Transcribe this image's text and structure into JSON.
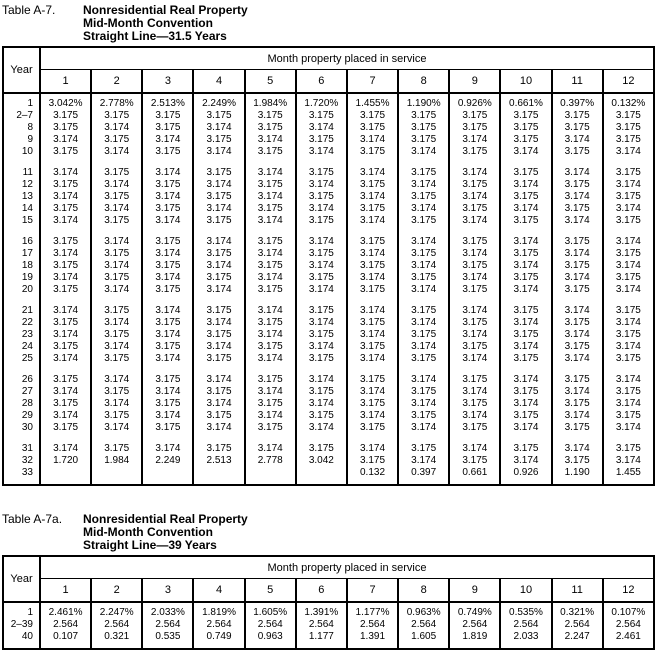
{
  "page": {
    "background": "#ffffff",
    "text_color": "#000000",
    "border_color": "#000000"
  },
  "tables": [
    {
      "label": "Table A-7.",
      "title_lines": [
        "Nonresidential Real Property",
        "Mid-Month Convention",
        "Straight Line—31.5 Years"
      ],
      "year_header": "Year",
      "month_header": "Month property placed in service",
      "month_columns": [
        "1",
        "2",
        "3",
        "4",
        "5",
        "6",
        "7",
        "8",
        "9",
        "10",
        "11",
        "12"
      ],
      "row_groups": [
        {
          "rows": [
            {
              "year": "1",
              "values": [
                "3.042%",
                "2.778%",
                "2.513%",
                "2.249%",
                "1.984%",
                "1.720%",
                "1.455%",
                "1.190%",
                "0.926%",
                "0.661%",
                "0.397%",
                "0.132%"
              ]
            },
            {
              "year": "2–7",
              "values": [
                "3.175",
                "3.175",
                "3.175",
                "3.175",
                "3.175",
                "3.175",
                "3.175",
                "3.175",
                "3.175",
                "3.175",
                "3.175",
                "3.175"
              ]
            },
            {
              "year": "8",
              "values": [
                "3.175",
                "3.174",
                "3.175",
                "3.174",
                "3.175",
                "3.174",
                "3.175",
                "3.175",
                "3.175",
                "3.175",
                "3.175",
                "3.175"
              ]
            },
            {
              "year": "9",
              "values": [
                "3.174",
                "3.175",
                "3.174",
                "3.175",
                "3.174",
                "3.175",
                "3.174",
                "3.175",
                "3.174",
                "3.175",
                "3.174",
                "3.175"
              ]
            },
            {
              "year": "10",
              "values": [
                "3.175",
                "3.174",
                "3.175",
                "3.174",
                "3.175",
                "3.174",
                "3.175",
                "3.174",
                "3.175",
                "3.174",
                "3.175",
                "3.174"
              ]
            }
          ]
        },
        {
          "rows": [
            {
              "year": "11",
              "values": [
                "3.174",
                "3.175",
                "3.174",
                "3.175",
                "3.174",
                "3.175",
                "3.174",
                "3.175",
                "3.174",
                "3.175",
                "3.174",
                "3.175"
              ]
            },
            {
              "year": "12",
              "values": [
                "3.175",
                "3.174",
                "3.175",
                "3.174",
                "3.175",
                "3.174",
                "3.175",
                "3.174",
                "3.175",
                "3.174",
                "3.175",
                "3.174"
              ]
            },
            {
              "year": "13",
              "values": [
                "3.174",
                "3.175",
                "3.174",
                "3.175",
                "3.174",
                "3.175",
                "3.174",
                "3.175",
                "3.174",
                "3.175",
                "3.174",
                "3.175"
              ]
            },
            {
              "year": "14",
              "values": [
                "3.175",
                "3.174",
                "3.175",
                "3.174",
                "3.175",
                "3.174",
                "3.175",
                "3.174",
                "3.175",
                "3.174",
                "3.175",
                "3.174"
              ]
            },
            {
              "year": "15",
              "values": [
                "3.174",
                "3.175",
                "3.174",
                "3.175",
                "3.174",
                "3.175",
                "3.174",
                "3.175",
                "3.174",
                "3.175",
                "3.174",
                "3.175"
              ]
            }
          ]
        },
        {
          "rows": [
            {
              "year": "16",
              "values": [
                "3.175",
                "3.174",
                "3.175",
                "3.174",
                "3.175",
                "3.174",
                "3.175",
                "3.174",
                "3.175",
                "3.174",
                "3.175",
                "3.174"
              ]
            },
            {
              "year": "17",
              "values": [
                "3.174",
                "3.175",
                "3.174",
                "3.175",
                "3.174",
                "3.175",
                "3.174",
                "3.175",
                "3.174",
                "3.175",
                "3.174",
                "3.175"
              ]
            },
            {
              "year": "18",
              "values": [
                "3.175",
                "3.174",
                "3.175",
                "3.174",
                "3.175",
                "3.174",
                "3.175",
                "3.174",
                "3.175",
                "3.174",
                "3.175",
                "3.174"
              ]
            },
            {
              "year": "19",
              "values": [
                "3.174",
                "3.175",
                "3.174",
                "3.175",
                "3.174",
                "3.175",
                "3.174",
                "3.175",
                "3.174",
                "3.175",
                "3.174",
                "3.175"
              ]
            },
            {
              "year": "20",
              "values": [
                "3.175",
                "3.174",
                "3.175",
                "3.174",
                "3.175",
                "3.174",
                "3.175",
                "3.174",
                "3.175",
                "3.174",
                "3.175",
                "3.174"
              ]
            }
          ]
        },
        {
          "rows": [
            {
              "year": "21",
              "values": [
                "3.174",
                "3.175",
                "3.174",
                "3.175",
                "3.174",
                "3.175",
                "3.174",
                "3.175",
                "3.174",
                "3.175",
                "3.174",
                "3.175"
              ]
            },
            {
              "year": "22",
              "values": [
                "3.175",
                "3.174",
                "3.175",
                "3.174",
                "3.175",
                "3.174",
                "3.175",
                "3.174",
                "3.175",
                "3.174",
                "3.175",
                "3.174"
              ]
            },
            {
              "year": "23",
              "values": [
                "3.174",
                "3.175",
                "3.174",
                "3.175",
                "3.174",
                "3.175",
                "3.174",
                "3.175",
                "3.174",
                "3.175",
                "3.174",
                "3.175"
              ]
            },
            {
              "year": "24",
              "values": [
                "3.175",
                "3.174",
                "3.175",
                "3.174",
                "3.175",
                "3.174",
                "3.175",
                "3.174",
                "3.175",
                "3.174",
                "3.175",
                "3.174"
              ]
            },
            {
              "year": "25",
              "values": [
                "3.174",
                "3.175",
                "3.174",
                "3.175",
                "3.174",
                "3.175",
                "3.174",
                "3.175",
                "3.174",
                "3.175",
                "3.174",
                "3.175"
              ]
            }
          ]
        },
        {
          "rows": [
            {
              "year": "26",
              "values": [
                "3.175",
                "3.174",
                "3.175",
                "3.174",
                "3.175",
                "3.174",
                "3.175",
                "3.174",
                "3.175",
                "3.174",
                "3.175",
                "3.174"
              ]
            },
            {
              "year": "27",
              "values": [
                "3.174",
                "3.175",
                "3.174",
                "3.175",
                "3.174",
                "3.175",
                "3.174",
                "3.175",
                "3.174",
                "3.175",
                "3.174",
                "3.175"
              ]
            },
            {
              "year": "28",
              "values": [
                "3.175",
                "3.174",
                "3.175",
                "3.174",
                "3.175",
                "3.174",
                "3.175",
                "3.174",
                "3.175",
                "3.174",
                "3.175",
                "3.174"
              ]
            },
            {
              "year": "29",
              "values": [
                "3.174",
                "3.175",
                "3.174",
                "3.175",
                "3.174",
                "3.175",
                "3.174",
                "3.175",
                "3.174",
                "3.175",
                "3.174",
                "3.175"
              ]
            },
            {
              "year": "30",
              "values": [
                "3.175",
                "3.174",
                "3.175",
                "3.174",
                "3.175",
                "3.174",
                "3.175",
                "3.174",
                "3.175",
                "3.174",
                "3.175",
                "3.174"
              ]
            }
          ]
        },
        {
          "rows": [
            {
              "year": "31",
              "values": [
                "3.174",
                "3.175",
                "3.174",
                "3.175",
                "3.174",
                "3.175",
                "3.174",
                "3.175",
                "3.174",
                "3.175",
                "3.174",
                "3.175"
              ]
            },
            {
              "year": "32",
              "values": [
                "1.720",
                "1.984",
                "2.249",
                "2.513",
                "2.778",
                "3.042",
                "3.175",
                "3.174",
                "3.175",
                "3.174",
                "3.175",
                "3.174"
              ]
            },
            {
              "year": "33",
              "values": [
                "",
                "",
                "",
                "",
                "",
                "",
                "0.132",
                "0.397",
                "0.661",
                "0.926",
                "1.190",
                "1.455"
              ]
            }
          ]
        }
      ]
    },
    {
      "label": "Table A-7a.",
      "title_lines": [
        "Nonresidential Real Property",
        "Mid-Month Convention",
        "Straight Line—39 Years"
      ],
      "year_header": "Year",
      "month_header": "Month property placed in service",
      "month_columns": [
        "1",
        "2",
        "3",
        "4",
        "5",
        "6",
        "7",
        "8",
        "9",
        "10",
        "11",
        "12"
      ],
      "row_groups": [
        {
          "rows": [
            {
              "year": "1",
              "values": [
                "2.461%",
                "2.247%",
                "2.033%",
                "1.819%",
                "1.605%",
                "1.391%",
                "1.177%",
                "0.963%",
                "0.749%",
                "0.535%",
                "0.321%",
                "0.107%"
              ]
            },
            {
              "year": "2–39",
              "values": [
                "2.564",
                "2.564",
                "2.564",
                "2.564",
                "2.564",
                "2.564",
                "2.564",
                "2.564",
                "2.564",
                "2.564",
                "2.564",
                "2.564"
              ]
            },
            {
              "year": "40",
              "values": [
                "0.107",
                "0.321",
                "0.535",
                "0.749",
                "0.963",
                "1.177",
                "1.391",
                "1.605",
                "1.819",
                "2.033",
                "2.247",
                "2.461"
              ]
            }
          ]
        }
      ]
    }
  ]
}
